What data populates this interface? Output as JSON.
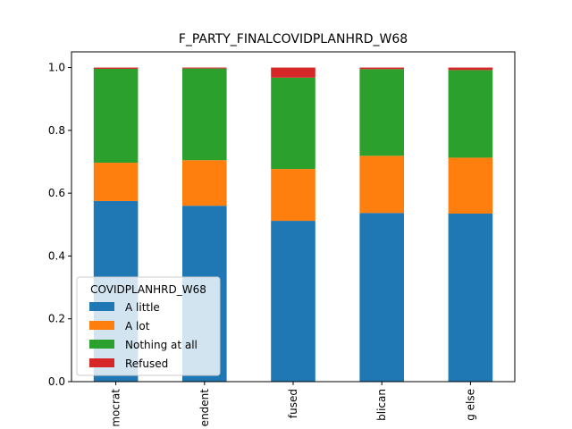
{
  "chart_data": {
    "type": "bar",
    "stacked": true,
    "title": "F_PARTY_FINALCOVIDPLANHRD_W68",
    "xlabel": "",
    "ylabel": "",
    "categories": [
      "Democrat",
      "Independent",
      "Refused",
      "Republican",
      "Something else"
    ],
    "category_labels_visible": [
      "mocrat",
      "endent",
      "fused",
      "blican",
      "g else"
    ],
    "ylim": [
      0,
      1.05
    ],
    "yticks": [
      "0.0",
      "0.2",
      "0.4",
      "0.6",
      "0.8",
      "1.0"
    ],
    "grid": false,
    "legend": {
      "title": "COVIDPLANHRD_W68",
      "placement": "lower-left"
    },
    "series": [
      {
        "name": "A little",
        "color": "#1f77b4",
        "values": [
          0.575,
          0.56,
          0.512,
          0.537,
          0.535
        ]
      },
      {
        "name": "A lot",
        "color": "#ff7f0e",
        "values": [
          0.122,
          0.145,
          0.165,
          0.182,
          0.178
        ]
      },
      {
        "name": "Nothing at all",
        "color": "#2ca02c",
        "values": [
          0.299,
          0.292,
          0.291,
          0.276,
          0.279
        ]
      },
      {
        "name": "Refused",
        "color": "#d62728",
        "values": [
          0.004,
          0.003,
          0.032,
          0.005,
          0.008
        ]
      }
    ]
  }
}
